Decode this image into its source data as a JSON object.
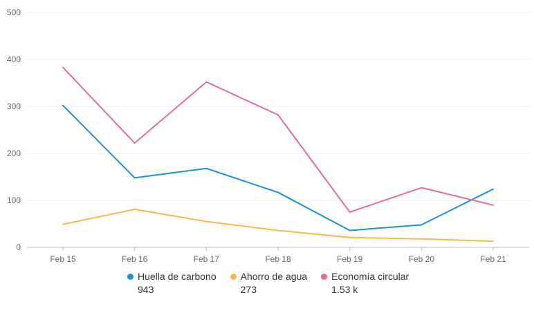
{
  "chart_data": {
    "type": "line",
    "categories": [
      "Feb 15",
      "Feb 16",
      "Feb 17",
      "Feb 18",
      "Feb 19",
      "Feb 20",
      "Feb 21"
    ],
    "ylim": [
      0,
      500
    ],
    "yticks": [
      "0",
      "100",
      "200",
      "300",
      "400",
      "500"
    ],
    "grid": true,
    "legend_position": "bottom",
    "series": [
      {
        "name": "Huella de carbono",
        "total": "943",
        "color": "#1a90d8",
        "values": [
          302,
          148,
          168,
          117,
          36,
          48,
          124
        ]
      },
      {
        "name": "Ahorro de agua",
        "total": "273",
        "color": "#f5b945",
        "values": [
          49,
          81,
          55,
          36,
          21,
          18,
          13
        ]
      },
      {
        "name": "Economía circular",
        "total": "1.53 k",
        "color": "#e56b9a",
        "values": [
          383,
          222,
          352,
          282,
          75,
          127,
          90
        ]
      }
    ]
  }
}
